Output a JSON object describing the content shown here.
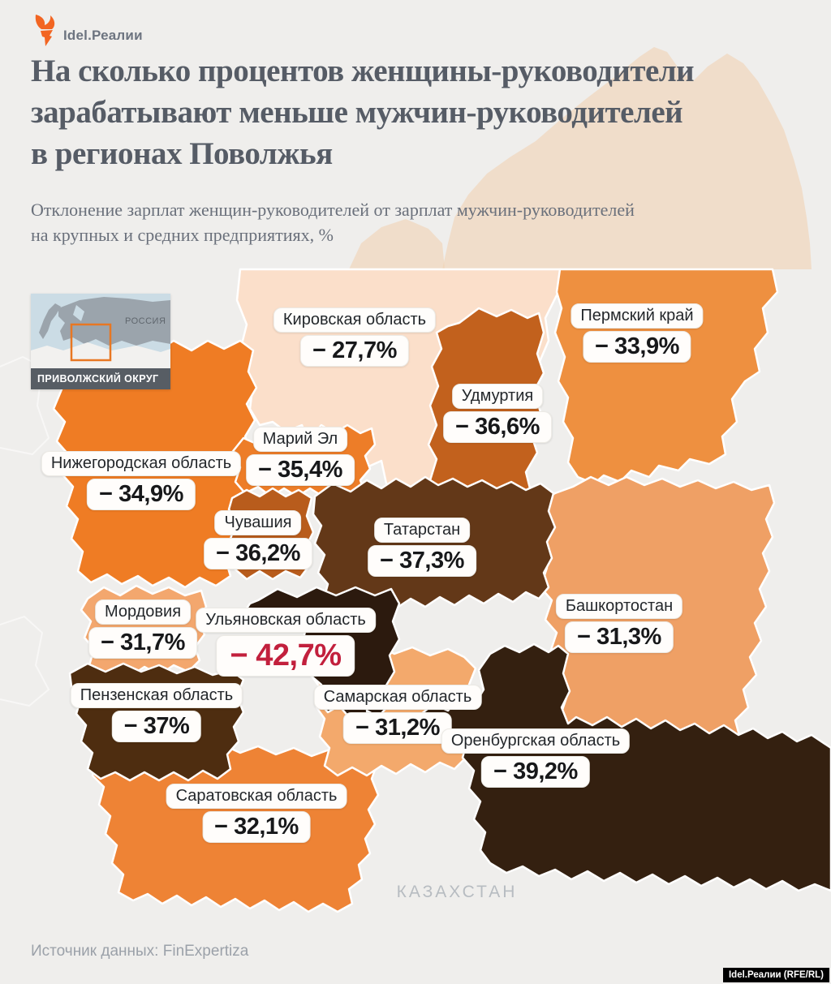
{
  "brand": {
    "logo_text": "Idel.Реалии",
    "credit_badge": "Idel.Реалии (RFE/RL)",
    "accent_orange": "#f26522"
  },
  "header": {
    "title_lines": [
      "На сколько процентов женщины-руководители",
      "зарабатывают меньше мужчин-руководителей",
      "в регионах Поволжья"
    ],
    "subtitle_lines": [
      "Отклонение зарплат женщин-руководителей от зарплат мужчин-руководителей",
      "на крупных и средних предприятиях, %"
    ],
    "title_color": "#565c66",
    "subtitle_color": "#6a707b"
  },
  "inset_map": {
    "country": "РОССИЯ",
    "district": "ПРИВОЛЖСКИЙ ОКРУГ"
  },
  "map": {
    "neighbor": "КАЗАХСТАН"
  },
  "footer": {
    "source": "Источник данных: FinExpertiza"
  },
  "colors": {
    "value_highlight": "#c2203d",
    "background": "#efeeec"
  },
  "chart_data": {
    "type": "choropleth-map",
    "title": "На сколько процентов женщины-руководители зарабатывают меньше мужчин-руководителей в регионах Поволжья",
    "metric": "Отклонение зарплат женщин-руководителей от зарплат мужчин-руководителей на крупных и средних предприятиях",
    "unit": "%",
    "regions": [
      {
        "id": "kirov",
        "name": "Кировская область",
        "value": -27.7,
        "value_label": "− 27,7%",
        "color": "#fbdfca",
        "highlight": false
      },
      {
        "id": "perm",
        "name": "Пермский край",
        "value": -33.9,
        "value_label": "− 33,9%",
        "color": "#ee9040",
        "highlight": false
      },
      {
        "id": "udmurtia",
        "name": "Удмуртия",
        "value": -36.6,
        "value_label": "− 36,6%",
        "color": "#c2611d",
        "highlight": false
      },
      {
        "id": "mariy",
        "name": "Марий Эл",
        "value": -35.4,
        "value_label": "− 35,4%",
        "color": "#ed7d28",
        "highlight": false
      },
      {
        "id": "nizhny",
        "name": "Нижегородская область",
        "value": -34.9,
        "value_label": "− 34,9%",
        "color": "#ef7c24",
        "highlight": false
      },
      {
        "id": "chuvashia",
        "name": "Чувашия",
        "value": -36.2,
        "value_label": "− 36,2%",
        "color": "#b85c1c",
        "highlight": false
      },
      {
        "id": "tatarstan",
        "name": "Татарстан",
        "value": -37.3,
        "value_label": "− 37,3%",
        "color": "#633818",
        "highlight": false
      },
      {
        "id": "mordovia",
        "name": "Мордовия",
        "value": -31.7,
        "value_label": "− 31,7%",
        "color": "#f3a76e",
        "highlight": false
      },
      {
        "id": "ulyanovsk",
        "name": "Ульяновская область",
        "value": -42.7,
        "value_label": "− 42,7%",
        "color": "#2c1a0e",
        "highlight": true
      },
      {
        "id": "bashkortostan",
        "name": "Башкортостан",
        "value": -31.3,
        "value_label": "− 31,3%",
        "color": "#efa065",
        "highlight": false
      },
      {
        "id": "penza",
        "name": "Пензенская область",
        "value": -37.0,
        "value_label": "− 37%",
        "color": "#4e2d10",
        "highlight": false
      },
      {
        "id": "samara",
        "name": "Самарская область",
        "value": -31.2,
        "value_label": "− 31,2%",
        "color": "#f3a96c",
        "highlight": false
      },
      {
        "id": "orenburg",
        "name": "Оренбургская область",
        "value": -39.2,
        "value_label": "− 39,2%",
        "color": "#342010",
        "highlight": false
      },
      {
        "id": "saratov",
        "name": "Саратовская область",
        "value": -32.1,
        "value_label": "− 32,1%",
        "color": "#ee8335",
        "highlight": false
      }
    ]
  }
}
